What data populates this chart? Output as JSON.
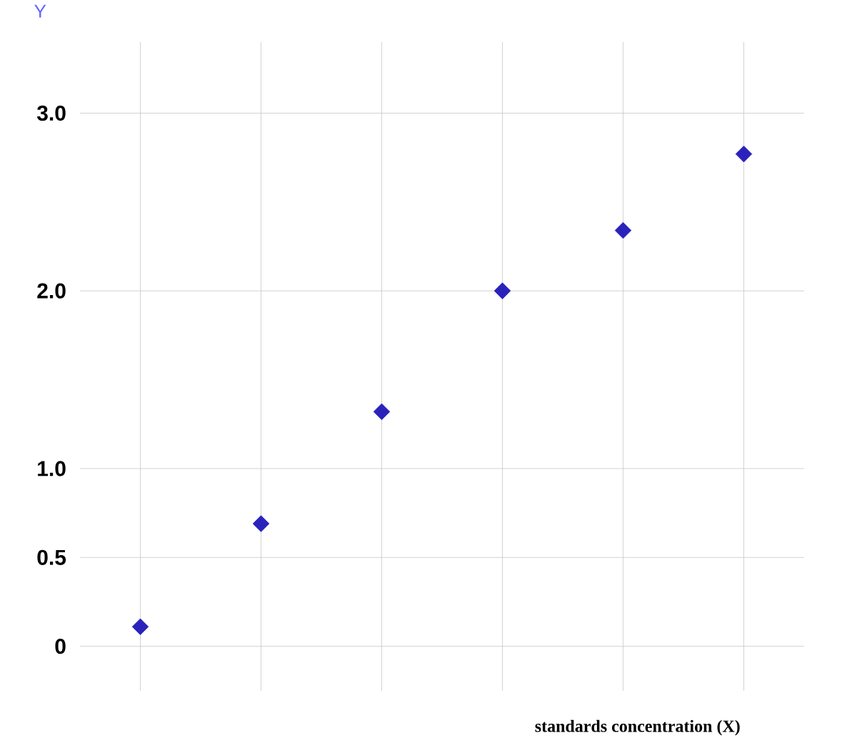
{
  "chart_data": {
    "type": "scatter",
    "xlabel": "standards concentration (X)",
    "ylabel": "Y",
    "categories": [
      null,
      null,
      null,
      null,
      null,
      null
    ],
    "values": [
      0.11,
      0.69,
      1.32,
      2.0,
      2.34,
      2.77
    ],
    "color": "#2a22bb",
    "marker": "diamond",
    "grid": true,
    "tick_labels": "y",
    "ylim": [
      -0.25,
      3.4
    ],
    "yticks": [
      {
        "value": 0,
        "label": "0"
      },
      {
        "value": 0.5,
        "label": "0.5"
      },
      {
        "value": 1.0,
        "label": "1.0"
      },
      {
        "value": 2.0,
        "label": "2.0"
      },
      {
        "value": 3.0,
        "label": "3.0"
      }
    ]
  }
}
